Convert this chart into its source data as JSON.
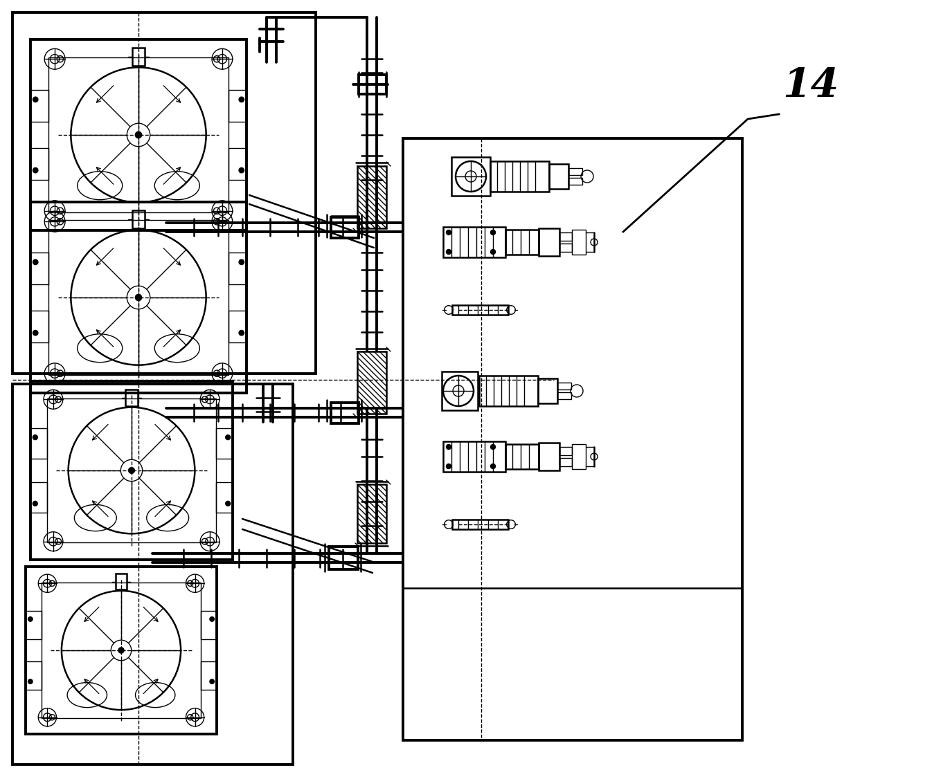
{
  "bg_color": "#ffffff",
  "line_color": "#000000",
  "fig_width": 13.46,
  "fig_height": 11.26,
  "dpi": 100,
  "label_14": "14"
}
